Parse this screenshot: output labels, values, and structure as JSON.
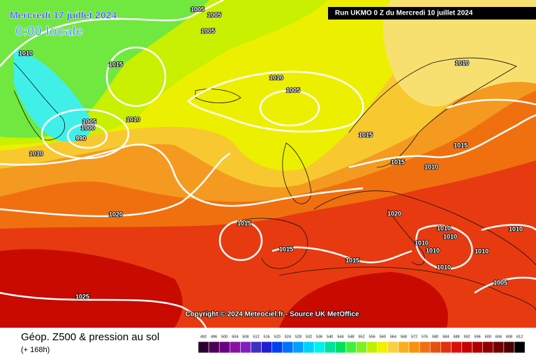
{
  "header": {
    "date": "Mercredi 17 juillet 2024",
    "time": "0:00 locale",
    "run": "Run UKMO 0 Z du Mercredi 10 juillet 2024"
  },
  "copyright": "Copyright © 2024 Meteociel.fr - Source UK MetOffice",
  "legend": {
    "title": "Géop. Z500 & pression au sol",
    "subtitle": "(+ 168h)",
    "scale": [
      {
        "value": 492,
        "color": "#2a0030"
      },
      {
        "value": 496,
        "color": "#4a0058"
      },
      {
        "value": 500,
        "color": "#6a0080"
      },
      {
        "value": 504,
        "color": "#8a10a0"
      },
      {
        "value": 508,
        "color": "#8020c0"
      },
      {
        "value": 512,
        "color": "#4030c0"
      },
      {
        "value": 516,
        "color": "#2020d0"
      },
      {
        "value": 520,
        "color": "#0040f0"
      },
      {
        "value": 524,
        "color": "#0070ff"
      },
      {
        "value": 528,
        "color": "#00a0ff"
      },
      {
        "value": 532,
        "color": "#00d0ff"
      },
      {
        "value": 536,
        "color": "#00f0f0"
      },
      {
        "value": 540,
        "color": "#00e0a0"
      },
      {
        "value": 544,
        "color": "#00e060"
      },
      {
        "value": 548,
        "color": "#40f040"
      },
      {
        "value": 552,
        "color": "#80f020"
      },
      {
        "value": 556,
        "color": "#c0f000"
      },
      {
        "value": 560,
        "color": "#f0f000"
      },
      {
        "value": 564,
        "color": "#f8d040"
      },
      {
        "value": 568,
        "color": "#f8b020"
      },
      {
        "value": 572,
        "color": "#f89010"
      },
      {
        "value": 576,
        "color": "#f07010"
      },
      {
        "value": 580,
        "color": "#e85010"
      },
      {
        "value": 584,
        "color": "#e03010"
      },
      {
        "value": 588,
        "color": "#d81010"
      },
      {
        "value": 592,
        "color": "#c80000"
      },
      {
        "value": 596,
        "color": "#b00000"
      },
      {
        "value": 600,
        "color": "#900000"
      },
      {
        "value": 604,
        "color": "#700000"
      },
      {
        "value": 608,
        "color": "#500000"
      },
      {
        "value": 612,
        "color": "#000000"
      }
    ]
  },
  "isobar_labels": [
    1005,
    1005,
    1005,
    1010,
    1015,
    1010,
    1005,
    1010,
    1005,
    1000,
    1010,
    990,
    1015,
    1010,
    1015,
    1015,
    1010,
    1020,
    1020,
    1015,
    1010,
    1010,
    1010,
    1015,
    1010,
    1010,
    1010,
    1015,
    1010,
    1005,
    1025
  ]
}
